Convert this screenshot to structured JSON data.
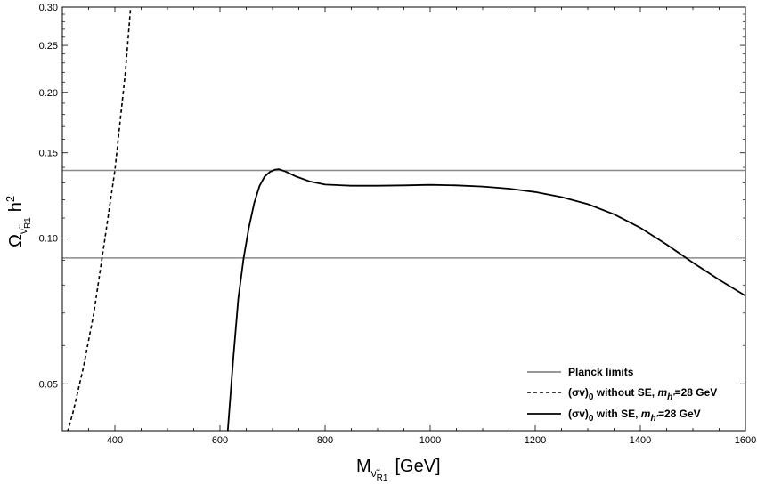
{
  "chart_data": {
    "type": "line",
    "x_axis": {
      "title": "M",
      "subscript": "ν̃",
      "subsubscript": "R1",
      "units": "[GeV]",
      "range": [
        300,
        1600
      ],
      "major_ticks": [
        400,
        600,
        800,
        1000,
        1200,
        1400,
        1600
      ],
      "minor_step": 50
    },
    "y_axis": {
      "title": "Ω",
      "subscript": "ν̃",
      "subsubscript": "R1",
      "tail": "h",
      "tail_sup": "2",
      "scale": "log",
      "range": [
        0.04,
        0.3
      ],
      "major_ticks": [
        0.05,
        0.1,
        0.15,
        0.2,
        0.25,
        0.3
      ],
      "major_labels": [
        "0.05",
        "0.10",
        "0.15",
        "0.20",
        "0.25",
        "0.30"
      ],
      "minor_ticks": [
        0.06,
        0.07,
        0.08,
        0.09,
        0.11,
        0.12,
        0.13,
        0.14,
        0.16,
        0.17,
        0.18,
        0.19,
        0.21,
        0.22,
        0.23,
        0.24,
        0.26,
        0.27,
        0.28,
        0.29
      ]
    },
    "grid": false,
    "legend_position": "bottom-right",
    "planck_limits": [
      0.091,
      0.138
    ],
    "series": [
      {
        "name_prefix": "(σv)",
        "name_sub": "0",
        "name_mid": " without SE, ",
        "name_var": "m",
        "name_var_sub": "h'",
        "name_suffix": "=28 GeV",
        "style": "dashed",
        "color": "#000000",
        "x": [
          300,
          320,
          340,
          360,
          380,
          400,
          420,
          430
        ],
        "y": [
          0.0365,
          0.0435,
          0.054,
          0.07,
          0.098,
          0.138,
          0.22,
          0.3
        ]
      },
      {
        "name_prefix": "(σv)",
        "name_sub": "0",
        "name_mid": " with SE, ",
        "name_var": "m",
        "name_var_sub": "h'",
        "name_suffix": "=28 GeV",
        "style": "solid",
        "color": "#000000",
        "x": [
          615,
          625,
          635,
          645,
          655,
          665,
          675,
          685,
          695,
          705,
          712,
          725,
          745,
          770,
          800,
          850,
          900,
          950,
          1000,
          1050,
          1100,
          1150,
          1200,
          1250,
          1300,
          1350,
          1400,
          1450,
          1500,
          1550,
          1600
        ],
        "y": [
          0.04,
          0.056,
          0.075,
          0.091,
          0.105,
          0.118,
          0.128,
          0.134,
          0.137,
          0.1385,
          0.1388,
          0.1372,
          0.134,
          0.131,
          0.129,
          0.1283,
          0.1283,
          0.1285,
          0.1288,
          0.1285,
          0.1278,
          0.1265,
          0.1245,
          0.1215,
          0.1175,
          0.112,
          0.105,
          0.097,
          0.089,
          0.082,
          0.076
        ]
      }
    ],
    "legend": [
      {
        "key": "planck",
        "label": "Planck limits",
        "style": "solid",
        "color": "#8a8a8a"
      },
      {
        "key": "series0"
      },
      {
        "key": "series1"
      }
    ]
  }
}
